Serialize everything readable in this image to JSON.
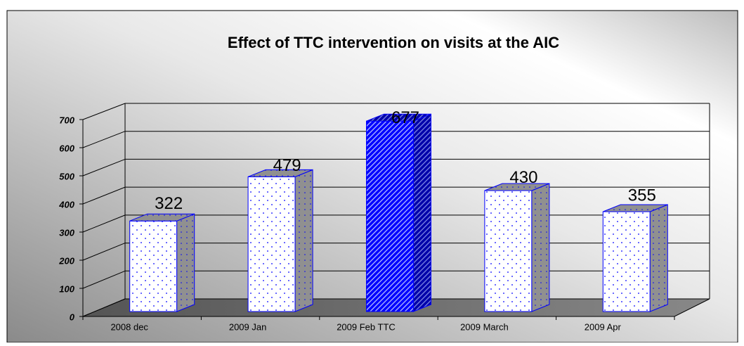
{
  "chart_data": {
    "type": "bar3d",
    "title": "Effect of TTC intervention on visits at the AIC",
    "categories": [
      "2008 dec",
      "2009 Jan",
      "2009 Feb TTC",
      "2009 March",
      "2009 Apr"
    ],
    "values": [
      322,
      479,
      677,
      430,
      355
    ],
    "color": "#0000ff",
    "bar_patterns": [
      "dots",
      "dots",
      "hatch",
      "dots",
      "dots"
    ],
    "ylim": [
      0,
      700
    ],
    "yticks": [
      0,
      100,
      200,
      300,
      400,
      500,
      600,
      700
    ],
    "grid": true
  }
}
